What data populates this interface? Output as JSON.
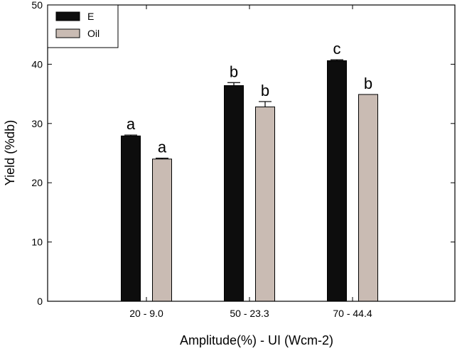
{
  "chart_data": {
    "type": "bar",
    "title": "",
    "xlabel": "Amplitude(%) - UI (Wcm-2)",
    "ylabel": "Yield (%db)",
    "ylim": [
      0,
      50
    ],
    "yticks": [
      "0",
      "10",
      "20",
      "30",
      "40",
      "50"
    ],
    "categories": [
      "20 - 9.0",
      "50 - 23.3",
      "70 - 44.4"
    ],
    "grid": false,
    "legend_position": "top-left",
    "series": [
      {
        "name": "E",
        "color": "#0d0d0d",
        "values": [
          27.9,
          36.4,
          40.6
        ],
        "errors": [
          0.15,
          0.5,
          0.15
        ],
        "labels": [
          "a",
          "b",
          "c"
        ]
      },
      {
        "name": "Oil",
        "color": "#c9bbb3",
        "values": [
          24.0,
          32.8,
          34.9
        ],
        "errors": [
          0.15,
          0.9,
          0.0
        ],
        "labels": [
          "a",
          "b",
          "b"
        ]
      }
    ]
  }
}
